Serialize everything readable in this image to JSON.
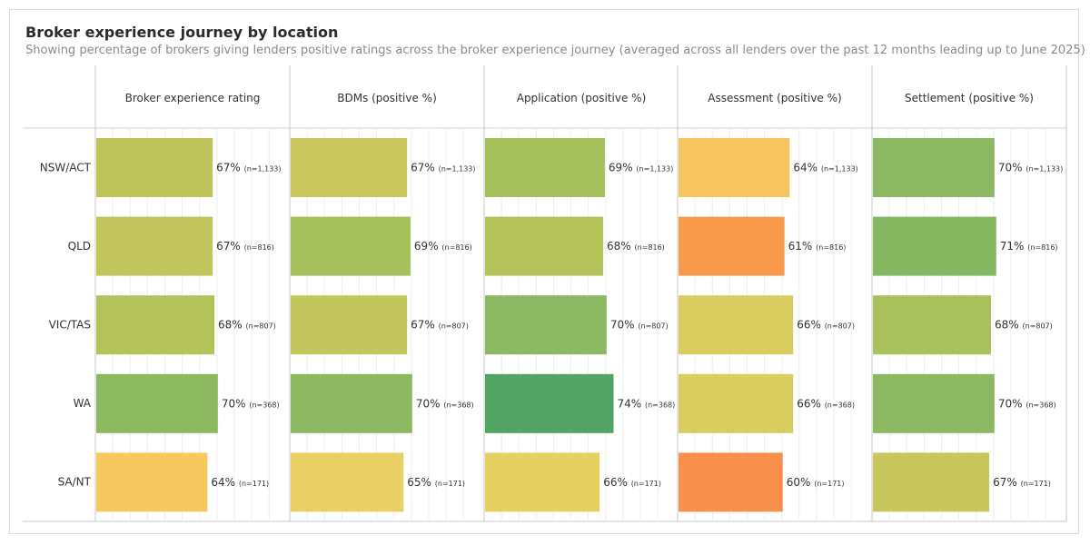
{
  "title": "Broker experience journey by location",
  "subtitle": "Showing percentage of brokers giving lenders positive ratings across the broker experience journey (averaged across all lenders over the past 12 months leading up to June 2025)",
  "chart_data": {
    "type": "bar",
    "orientation": "horizontal",
    "categories": [
      "NSW/ACT",
      "QLD",
      "VIC/TAS",
      "WA",
      "SA/NT"
    ],
    "sample_sizes": [
      "(n=1,133)",
      "(n=816)",
      "(n=807)",
      "(n=368)",
      "(n=171)"
    ],
    "unit": "%",
    "xlim": [
      0,
      100
    ],
    "grid": true,
    "legend": "none",
    "series": [
      {
        "name": "Broker experience rating",
        "values": [
          67,
          67,
          68,
          70,
          64
        ],
        "colors": [
          "#bec45a",
          "#c2c55c",
          "#b4c25a",
          "#8cb860",
          "#f8c860"
        ]
      },
      {
        "name": "BDMs (positive %)",
        "values": [
          67,
          69,
          67,
          70,
          65
        ],
        "colors": [
          "#c9c75e",
          "#a6c05c",
          "#c3c65d",
          "#8db861",
          "#e8d065"
        ]
      },
      {
        "name": "Application (positive %)",
        "values": [
          69,
          68,
          70,
          74,
          66
        ],
        "colors": [
          "#a6c05c",
          "#b5c35b",
          "#8bb860",
          "#53a464",
          "#e5d162"
        ]
      },
      {
        "name": "Assessment (positive %)",
        "values": [
          64,
          61,
          66,
          66,
          60
        ],
        "colors": [
          "#f8c55e",
          "#f8994c",
          "#d9cd60",
          "#d9cd60",
          "#f88f4b"
        ]
      },
      {
        "name": "Settlement (positive %)",
        "values": [
          70,
          71,
          68,
          70,
          67
        ],
        "colors": [
          "#8bb860",
          "#85b660",
          "#a9c05c",
          "#8bb860",
          "#c8c75e"
        ]
      }
    ]
  }
}
